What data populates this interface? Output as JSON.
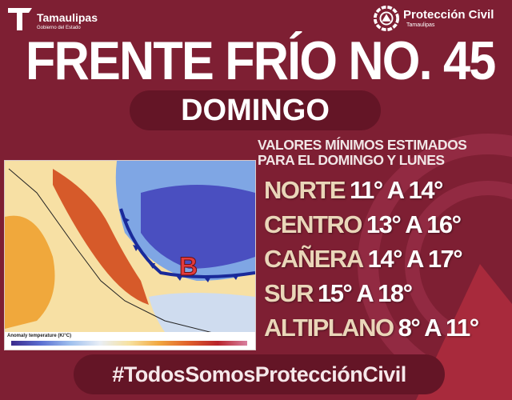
{
  "header": {
    "gov_logo": {
      "name": "Tamaulipas",
      "subtitle": "Gobierno del Estado"
    },
    "pc_logo": {
      "name": "Protección Civil",
      "subtitle": "Tamaulipas"
    }
  },
  "title": "FRENTE FRÍO NO. 45",
  "day": "DOMINGO",
  "subtitle": [
    "VALORES MÍNIMOS ESTIMADOS",
    "PARA EL DOMINGO Y LUNES"
  ],
  "regions": [
    {
      "name": "NORTE",
      "range": "11° A 14°"
    },
    {
      "name": "CENTRO",
      "range": "13° A 16°"
    },
    {
      "name": "CAÑERA",
      "range": "14° A 17°"
    },
    {
      "name": "SUR",
      "range": "15° A 18°"
    },
    {
      "name": "ALTIPLANO",
      "range": "8° A 11°"
    }
  ],
  "map": {
    "legend_label": "Anomaly temperature (K/°C)",
    "pressure_marker": "B"
  },
  "hashtag": "#TodosSomosProtecciónCivil",
  "colors": {
    "background": "#7e1f33",
    "pill": "#641526",
    "region_label": "#ead6b9",
    "front": "#1a2a9a",
    "marker": "#e23b3b"
  }
}
